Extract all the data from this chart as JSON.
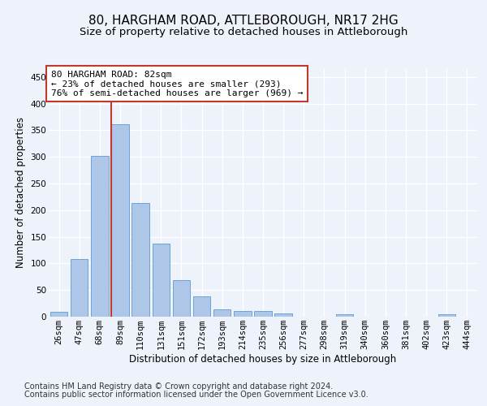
{
  "title1": "80, HARGHAM ROAD, ATTLEBOROUGH, NR17 2HG",
  "title2": "Size of property relative to detached houses in Attleborough",
  "xlabel": "Distribution of detached houses by size in Attleborough",
  "ylabel": "Number of detached properties",
  "categories": [
    "26sqm",
    "47sqm",
    "68sqm",
    "89sqm",
    "110sqm",
    "131sqm",
    "151sqm",
    "172sqm",
    "193sqm",
    "214sqm",
    "235sqm",
    "256sqm",
    "277sqm",
    "298sqm",
    "319sqm",
    "340sqm",
    "360sqm",
    "381sqm",
    "402sqm",
    "423sqm",
    "444sqm"
  ],
  "values": [
    9,
    108,
    302,
    362,
    213,
    137,
    69,
    38,
    13,
    11,
    10,
    6,
    0,
    0,
    4,
    0,
    0,
    0,
    0,
    4,
    0
  ],
  "bar_color": "#aec6e8",
  "bar_edge_color": "#5b9bd5",
  "vline_x_index": 3,
  "vline_color": "#c0392b",
  "annotation_text": "80 HARGHAM ROAD: 82sqm\n← 23% of detached houses are smaller (293)\n76% of semi-detached houses are larger (969) →",
  "annotation_box_color": "#ffffff",
  "annotation_border_color": "#c0392b",
  "footnote1": "Contains HM Land Registry data © Crown copyright and database right 2024.",
  "footnote2": "Contains public sector information licensed under the Open Government Licence v3.0.",
  "ylim_max": 465,
  "background_color": "#eef2fb",
  "grid_color": "#ffffff",
  "title_fontsize": 11,
  "subtitle_fontsize": 9.5,
  "axis_label_fontsize": 8.5,
  "tick_fontsize": 7.5,
  "annotation_fontsize": 8,
  "footnote_fontsize": 7
}
